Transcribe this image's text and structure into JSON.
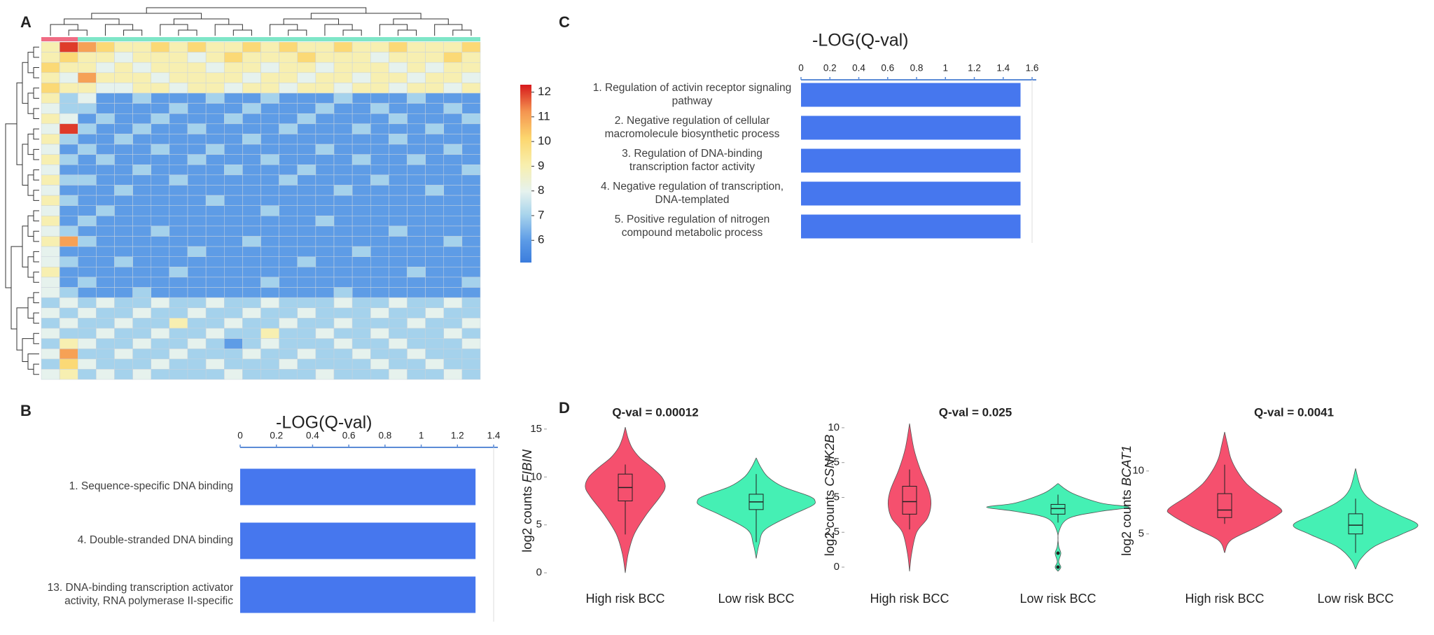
{
  "chart_data": [
    {
      "type": "heatmap",
      "panel": "A",
      "matrix": [
        [
          9,
          12,
          11,
          10,
          9,
          9,
          10,
          9,
          10,
          9,
          9,
          10,
          9,
          10,
          9,
          9,
          10,
          9,
          9,
          10,
          9,
          9,
          9,
          10
        ],
        [
          9,
          10,
          9,
          9,
          8,
          9,
          9,
          9,
          8,
          9,
          10,
          9,
          9,
          9,
          10,
          9,
          9,
          9,
          8,
          9,
          9,
          9,
          10,
          9
        ],
        [
          10,
          9,
          9,
          8,
          9,
          8,
          9,
          9,
          9,
          8,
          9,
          9,
          8,
          9,
          9,
          8,
          9,
          9,
          9,
          8,
          9,
          8,
          9,
          9
        ],
        [
          9,
          8,
          11,
          9,
          9,
          9,
          8,
          9,
          9,
          9,
          9,
          8,
          9,
          9,
          8,
          9,
          9,
          8,
          9,
          9,
          8,
          9,
          9,
          8
        ],
        [
          10,
          9,
          9,
          8,
          8,
          9,
          9,
          8,
          9,
          9,
          8,
          9,
          9,
          8,
          9,
          9,
          8,
          9,
          9,
          8,
          9,
          9,
          8,
          9
        ],
        [
          9,
          7,
          8,
          6,
          6,
          7,
          6,
          6,
          6,
          7,
          6,
          6,
          7,
          6,
          6,
          6,
          7,
          6,
          6,
          6,
          7,
          6,
          6,
          6
        ],
        [
          8,
          7,
          7,
          6,
          6,
          6,
          6,
          7,
          6,
          6,
          6,
          7,
          6,
          6,
          6,
          7,
          6,
          6,
          7,
          6,
          6,
          6,
          7,
          6
        ],
        [
          9,
          8,
          6,
          7,
          6,
          6,
          7,
          6,
          6,
          6,
          7,
          6,
          6,
          6,
          7,
          6,
          6,
          6,
          6,
          7,
          6,
          6,
          6,
          7
        ],
        [
          8,
          12,
          7,
          6,
          6,
          7,
          6,
          6,
          7,
          6,
          6,
          6,
          6,
          7,
          6,
          6,
          6,
          7,
          6,
          6,
          6,
          7,
          6,
          6
        ],
        [
          9,
          7,
          6,
          6,
          7,
          6,
          6,
          6,
          6,
          6,
          6,
          7,
          6,
          6,
          6,
          6,
          6,
          6,
          6,
          7,
          6,
          6,
          6,
          6
        ],
        [
          8,
          6,
          7,
          6,
          6,
          6,
          7,
          6,
          6,
          7,
          6,
          6,
          6,
          6,
          6,
          7,
          6,
          6,
          6,
          6,
          6,
          6,
          7,
          6
        ],
        [
          9,
          7,
          6,
          7,
          6,
          6,
          6,
          6,
          7,
          6,
          6,
          6,
          7,
          6,
          6,
          6,
          6,
          7,
          6,
          6,
          7,
          6,
          6,
          6
        ],
        [
          8,
          6,
          6,
          6,
          6,
          7,
          6,
          6,
          6,
          6,
          7,
          6,
          6,
          6,
          7,
          6,
          6,
          6,
          6,
          6,
          6,
          6,
          6,
          7
        ],
        [
          9,
          7,
          7,
          6,
          6,
          6,
          6,
          7,
          6,
          6,
          6,
          6,
          6,
          7,
          6,
          6,
          6,
          6,
          7,
          6,
          6,
          6,
          6,
          6
        ],
        [
          8,
          6,
          6,
          6,
          7,
          6,
          6,
          6,
          6,
          6,
          6,
          6,
          6,
          6,
          6,
          6,
          7,
          6,
          6,
          6,
          6,
          7,
          6,
          6
        ],
        [
          9,
          7,
          6,
          6,
          6,
          6,
          6,
          6,
          6,
          7,
          6,
          6,
          6,
          6,
          6,
          6,
          6,
          6,
          6,
          6,
          6,
          6,
          6,
          6
        ],
        [
          8,
          6,
          6,
          7,
          6,
          6,
          6,
          6,
          6,
          6,
          6,
          6,
          7,
          6,
          6,
          6,
          6,
          6,
          6,
          6,
          6,
          6,
          6,
          6
        ],
        [
          9,
          6,
          7,
          6,
          6,
          6,
          6,
          6,
          6,
          6,
          6,
          6,
          6,
          6,
          6,
          7,
          6,
          6,
          6,
          6,
          6,
          6,
          6,
          6
        ],
        [
          8,
          7,
          6,
          6,
          6,
          6,
          7,
          6,
          6,
          6,
          6,
          6,
          6,
          6,
          6,
          6,
          6,
          6,
          6,
          7,
          6,
          6,
          6,
          6
        ],
        [
          9,
          11,
          7,
          6,
          6,
          6,
          6,
          6,
          6,
          6,
          6,
          7,
          6,
          6,
          6,
          6,
          6,
          6,
          6,
          6,
          6,
          6,
          7,
          6
        ],
        [
          8,
          6,
          6,
          6,
          6,
          6,
          6,
          6,
          7,
          6,
          6,
          6,
          6,
          6,
          6,
          6,
          6,
          7,
          6,
          6,
          6,
          6,
          6,
          6
        ],
        [
          8,
          7,
          6,
          6,
          7,
          6,
          6,
          6,
          6,
          6,
          6,
          6,
          6,
          6,
          7,
          6,
          6,
          6,
          6,
          6,
          6,
          6,
          6,
          6
        ],
        [
          9,
          6,
          6,
          6,
          6,
          6,
          6,
          7,
          6,
          6,
          6,
          6,
          6,
          6,
          6,
          6,
          6,
          6,
          6,
          6,
          7,
          6,
          6,
          6
        ],
        [
          8,
          6,
          7,
          6,
          6,
          6,
          6,
          6,
          6,
          6,
          6,
          6,
          7,
          6,
          6,
          6,
          6,
          6,
          6,
          6,
          6,
          6,
          6,
          7
        ],
        [
          8,
          7,
          6,
          6,
          6,
          7,
          6,
          6,
          6,
          6,
          6,
          6,
          6,
          6,
          6,
          6,
          7,
          6,
          6,
          6,
          6,
          6,
          6,
          6
        ],
        [
          7,
          8,
          7,
          8,
          7,
          7,
          8,
          7,
          7,
          8,
          7,
          7,
          8,
          7,
          7,
          7,
          8,
          7,
          7,
          8,
          7,
          7,
          8,
          7
        ],
        [
          8,
          7,
          8,
          7,
          7,
          8,
          7,
          7,
          8,
          7,
          7,
          8,
          7,
          7,
          8,
          7,
          7,
          7,
          8,
          7,
          7,
          8,
          7,
          7
        ],
        [
          7,
          8,
          7,
          7,
          8,
          7,
          7,
          9,
          7,
          7,
          8,
          7,
          7,
          8,
          7,
          7,
          8,
          7,
          7,
          7,
          8,
          7,
          7,
          8
        ],
        [
          8,
          7,
          7,
          8,
          7,
          7,
          8,
          7,
          7,
          8,
          7,
          7,
          9,
          7,
          7,
          8,
          7,
          7,
          8,
          7,
          7,
          7,
          8,
          7
        ],
        [
          7,
          9,
          8,
          7,
          7,
          8,
          7,
          7,
          8,
          7,
          6,
          7,
          8,
          7,
          7,
          7,
          8,
          7,
          7,
          8,
          7,
          7,
          7,
          8
        ],
        [
          8,
          11,
          7,
          7,
          8,
          7,
          7,
          8,
          7,
          7,
          7,
          8,
          7,
          7,
          8,
          7,
          7,
          8,
          7,
          7,
          8,
          7,
          7,
          7
        ],
        [
          7,
          10,
          8,
          7,
          7,
          7,
          8,
          7,
          7,
          8,
          7,
          7,
          7,
          8,
          7,
          7,
          7,
          7,
          8,
          7,
          7,
          8,
          7,
          7
        ],
        [
          8,
          9,
          7,
          8,
          7,
          8,
          7,
          7,
          7,
          7,
          8,
          7,
          7,
          7,
          7,
          8,
          7,
          7,
          7,
          8,
          7,
          7,
          8,
          7
        ]
      ],
      "colorbar_lim": [
        5.1,
        12.3
      ],
      "colorbar_ticks": [
        6,
        7,
        8,
        9,
        10,
        11,
        12
      ]
    },
    {
      "type": "bar",
      "orientation": "horizontal",
      "panel": "B",
      "title": "-LOG(Q-val)",
      "categories": [
        "1. Sequence-specific DNA binding",
        "4. Double-stranded DNA binding",
        "13. DNA-binding transcription activator activity, RNA polymerase II-specific"
      ],
      "values": [
        1.3,
        1.3,
        1.3
      ],
      "color": "#4677ee",
      "xlim": [
        0,
        1.4
      ],
      "xticks": [
        0,
        0.2,
        0.4,
        0.6,
        0.8,
        1,
        1.2,
        1.4
      ]
    },
    {
      "type": "bar",
      "orientation": "horizontal",
      "panel": "C",
      "title": "-LOG(Q-val)",
      "categories": [
        "1. Regulation of activin receptor signaling pathway",
        "2. Negative regulation of cellular macromolecule biosynthetic process",
        "3. Regulation of DNA-binding transcription factor activity",
        "4. Negative regulation of transcription, DNA-templated",
        "5. Positive regulation of nitrogen compound metabolic process"
      ],
      "values": [
        1.52,
        1.52,
        1.52,
        1.52,
        1.52
      ],
      "color": "#4677ee",
      "xlim": [
        0,
        1.6
      ],
      "xticks": [
        0,
        0.2,
        0.4,
        0.6,
        0.8,
        1,
        1.2,
        1.4,
        1.6
      ]
    },
    {
      "type": "violin",
      "panel": "D",
      "title": "Q-val = 0.00012",
      "ylabel": "log2 counts",
      "gene": "FIBIN",
      "categories": [
        "High risk BCC",
        "Low risk BCC"
      ],
      "groups": [
        {
          "color": "#f5506e",
          "violin_y": [
            0,
            2,
            4,
            6,
            8,
            9,
            10,
            11,
            12,
            13,
            14,
            15.2
          ],
          "violin_width": [
            0,
            0.05,
            0.15,
            0.35,
            0.6,
            0.68,
            0.62,
            0.45,
            0.25,
            0.12,
            0.05,
            0
          ],
          "box": [
            4,
            7.5,
            8.9,
            10.3,
            11.3
          ]
        },
        {
          "color": "#45f0b4",
          "violin_y": [
            1.5,
            3,
            4.5,
            6,
            7,
            7.5,
            8,
            9,
            10,
            11,
            12
          ],
          "violin_width": [
            0,
            0.05,
            0.15,
            0.6,
            0.95,
            1,
            0.9,
            0.45,
            0.2,
            0.08,
            0
          ],
          "box": [
            3.2,
            6.6,
            7.4,
            8.2,
            10.3
          ]
        }
      ],
      "ylim": [
        -0.5,
        15.5
      ],
      "yticks": [
        0,
        5,
        10,
        15
      ]
    },
    {
      "type": "violin",
      "title": "Q-val = 0.025",
      "ylabel": "log2 counts",
      "gene": "CSNK2B",
      "categories": [
        "High risk BCC",
        "Low risk BCC"
      ],
      "groups": [
        {
          "color": "#f5506e",
          "violin_y": [
            -0.3,
            1,
            2.5,
            3.5,
            4.5,
            5.5,
            7,
            8.5,
            10.3
          ],
          "violin_width": [
            0,
            0.03,
            0.1,
            0.25,
            0.3,
            0.27,
            0.15,
            0.06,
            0
          ],
          "box": [
            2.7,
            3.8,
            4.7,
            5.8,
            7
          ]
        },
        {
          "color": "#45f0b4",
          "violin_y": [
            -0.3,
            0,
            0.4,
            1,
            1.5,
            2.5,
            3.5,
            4,
            4.3,
            4.6,
            5.3,
            6
          ],
          "violin_width": [
            0,
            0.04,
            0.01,
            0.04,
            0.01,
            0.01,
            0.15,
            0.6,
            1,
            0.6,
            0.2,
            0
          ],
          "box": [
            3.2,
            3.8,
            4.2,
            4.5,
            5.2
          ],
          "outliers": [
            1,
            0
          ]
        }
      ],
      "ylim": [
        -0.5,
        10.8
      ],
      "yticks": [
        0,
        2.5,
        5,
        7.5,
        10
      ]
    },
    {
      "type": "violin",
      "title": "Q-val = 0.0041",
      "ylabel": "log2 counts",
      "gene": "BCAT1",
      "categories": [
        "High risk BCC",
        "Low risk BCC"
      ],
      "groups": [
        {
          "color": "#f5506e",
          "violin_y": [
            3.5,
            4.5,
            5.5,
            6.5,
            7,
            8,
            9,
            10,
            11,
            12,
            13.1
          ],
          "violin_width": [
            0,
            0.1,
            0.5,
            0.85,
            0.9,
            0.6,
            0.35,
            0.2,
            0.1,
            0.05,
            0
          ],
          "box": [
            5.8,
            6.3,
            6.9,
            8.2,
            10.5
          ]
        },
        {
          "color": "#45f0b4",
          "violin_y": [
            2.2,
            3,
            4,
            5,
            5.7,
            6.5,
            7.5,
            8.5,
            10.2
          ],
          "violin_width": [
            0,
            0.08,
            0.3,
            0.75,
            1,
            0.7,
            0.3,
            0.1,
            0
          ],
          "box": [
            3.5,
            5,
            5.7,
            6.6,
            7.8
          ]
        }
      ],
      "ylim": [
        1.7,
        13.6
      ],
      "yticks": [
        5,
        10
      ]
    }
  ]
}
